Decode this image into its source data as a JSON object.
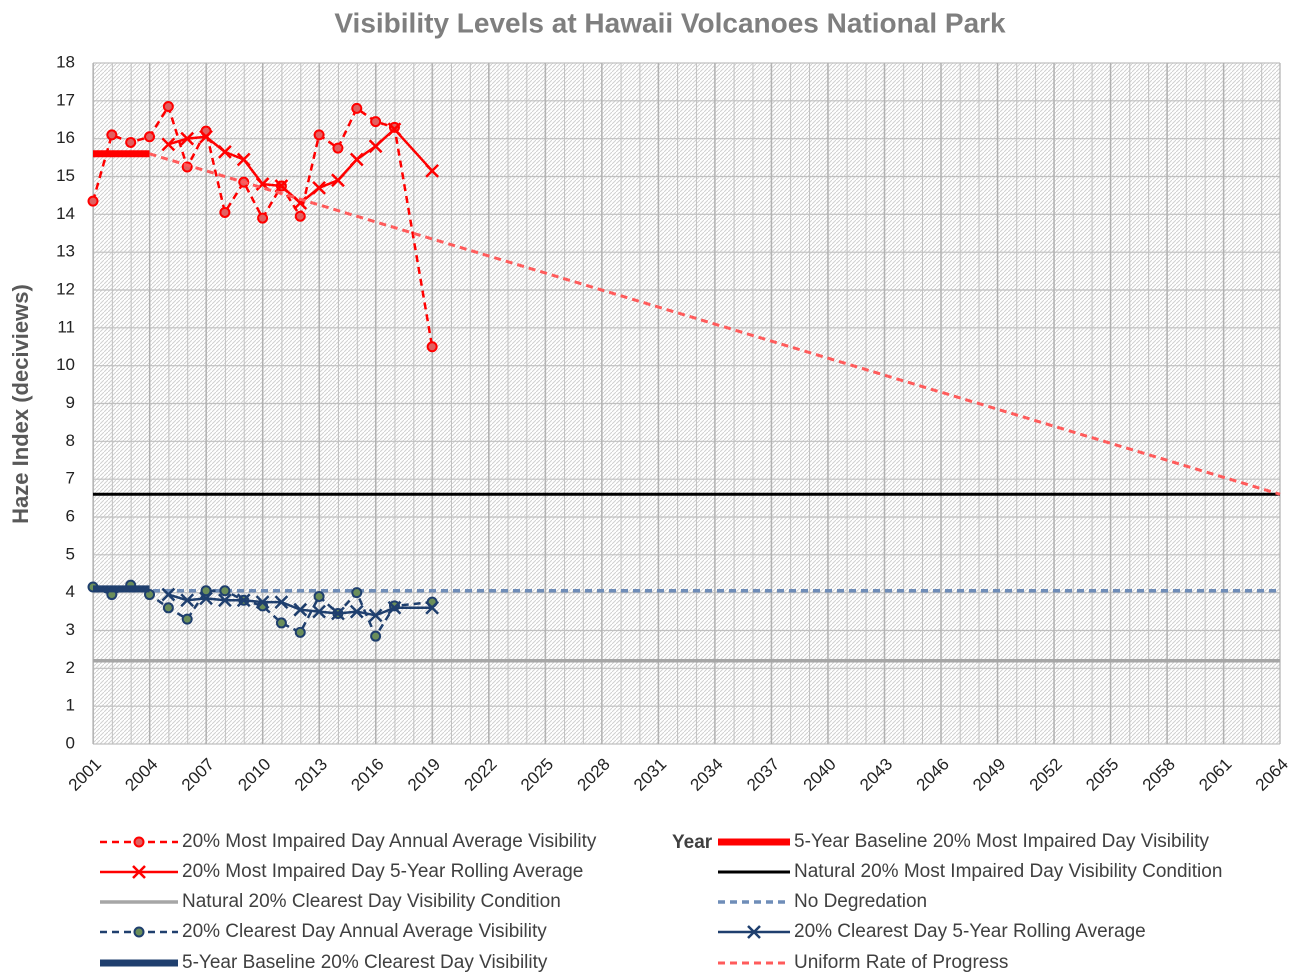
{
  "chart_data": {
    "type": "line",
    "title": "Visibility Levels at Hawaii Volcanoes National Park",
    "x_label": "Year",
    "y_label": "Haze Index (deciviews)",
    "xlim": [
      2001,
      2064
    ],
    "xticks": [
      2001,
      2004,
      2007,
      2010,
      2013,
      2016,
      2019,
      2022,
      2025,
      2028,
      2031,
      2034,
      2037,
      2040,
      2043,
      2046,
      2049,
      2052,
      2055,
      2058,
      2061,
      2064
    ],
    "ylim": [
      0,
      18
    ],
    "yticks": [
      0,
      1,
      2,
      3,
      4,
      5,
      6,
      7,
      8,
      9,
      10,
      11,
      12,
      13,
      14,
      15,
      16,
      17,
      18
    ],
    "grid": true,
    "series": [
      {
        "name": "20% Most Impaired Day Annual Average Visibility",
        "color": "#ff0000",
        "dash": true,
        "marker": "circle",
        "width": 2.5,
        "x": [
          2001,
          2002,
          2003,
          2004,
          2005,
          2006,
          2007,
          2008,
          2009,
          2010,
          2011,
          2012,
          2013,
          2014,
          2015,
          2016,
          2017,
          2019
        ],
        "values": [
          14.35,
          16.1,
          15.9,
          16.05,
          16.85,
          15.25,
          16.2,
          14.05,
          14.85,
          13.9,
          14.75,
          13.95,
          16.1,
          15.75,
          16.8,
          16.45,
          16.3,
          10.5
        ]
      },
      {
        "name": "5-Year Baseline 20% Most Impaired Day Visibility",
        "color": "#ff0000",
        "dash": false,
        "marker": "none",
        "width": 7,
        "x": [
          2001,
          2004
        ],
        "values": [
          15.6,
          15.6
        ]
      },
      {
        "name": "20% Most Impaired Day 5-Year Rolling Average",
        "color": "#ff0000",
        "dash": false,
        "marker": "x",
        "width": 2.5,
        "x": [
          2005,
          2006,
          2007,
          2008,
          2009,
          2010,
          2011,
          2012,
          2013,
          2014,
          2015,
          2016,
          2017,
          2019
        ],
        "values": [
          15.85,
          16.0,
          16.05,
          15.65,
          15.45,
          14.8,
          14.75,
          14.3,
          14.7,
          14.9,
          15.45,
          15.8,
          16.25,
          15.15
        ]
      },
      {
        "name": "Natural 20% Most Impaired Day  Visibility Condition",
        "color": "#000000",
        "dash": false,
        "marker": "none",
        "width": 3,
        "x": [
          2001,
          2064
        ],
        "values": [
          6.6,
          6.6
        ]
      },
      {
        "name": "Natural 20% Clearest Day Visibility Condition",
        "color": "#a6a6a6",
        "dash": false,
        "marker": "none",
        "width": 3.5,
        "x": [
          2001,
          2064
        ],
        "values": [
          2.2,
          2.2
        ]
      },
      {
        "name": "No Degredation",
        "color": "#6f8db8",
        "dash": true,
        "marker": "none",
        "width": 3.5,
        "x": [
          2001,
          2064
        ],
        "values": [
          4.05,
          4.05
        ]
      },
      {
        "name": "20% Clearest Day Annual Average Visibility",
        "color": "#1f3f6e",
        "dash": true,
        "marker": "circle-green",
        "width": 2.5,
        "x": [
          2001,
          2002,
          2003,
          2004,
          2005,
          2006,
          2007,
          2008,
          2009,
          2010,
          2011,
          2012,
          2013,
          2014,
          2015,
          2016,
          2017,
          2019
        ],
        "values": [
          4.15,
          3.95,
          4.2,
          3.95,
          3.6,
          3.3,
          4.05,
          4.05,
          3.8,
          3.65,
          3.2,
          2.95,
          3.9,
          3.45,
          4.0,
          2.85,
          3.65,
          3.75
        ]
      },
      {
        "name": "20% Clearest Day 5-Year Rolling Average",
        "color": "#1f3f6e",
        "dash": false,
        "marker": "x",
        "width": 2.5,
        "x": [
          2005,
          2006,
          2007,
          2008,
          2009,
          2010,
          2011,
          2012,
          2013,
          2014,
          2015,
          2016,
          2017,
          2019
        ],
        "values": [
          3.95,
          3.8,
          3.85,
          3.8,
          3.8,
          3.75,
          3.75,
          3.55,
          3.5,
          3.45,
          3.5,
          3.4,
          3.6,
          3.6
        ]
      },
      {
        "name": "5-Year Baseline 20% Clearest Day Visibility",
        "color": "#1f3f6e",
        "dash": false,
        "marker": "none",
        "width": 7,
        "x": [
          2001,
          2004
        ],
        "values": [
          4.1,
          4.1
        ]
      },
      {
        "name": "Uniform Rate of Progress",
        "color": "#ff5b5b",
        "dash": true,
        "marker": "none",
        "width": 3,
        "x": [
          2004,
          2064
        ],
        "values": [
          15.6,
          6.6
        ]
      }
    ]
  }
}
